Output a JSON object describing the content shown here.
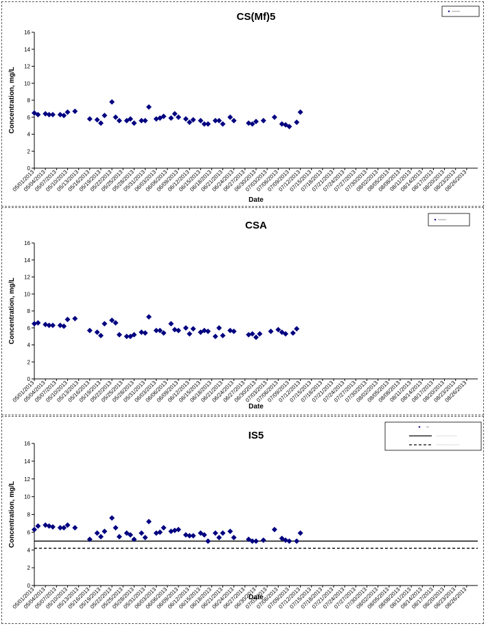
{
  "chart_data": [
    {
      "type": "scatter",
      "title": "CS(Mf)5",
      "xlabel": "Date",
      "ylabel": "Concentration, mg/L",
      "ylim": [
        0,
        16
      ],
      "yticks": [
        0,
        2,
        4,
        6,
        8,
        10,
        12,
        14,
        16
      ],
      "x_tick_labels": [
        "05/01/2013",
        "05/04/2013",
        "05/07/2013",
        "05/10/2013",
        "05/13/2013",
        "05/16/2013",
        "05/19/2013",
        "05/22/2013",
        "05/25/2013",
        "05/28/2013",
        "05/31/2013",
        "06/03/2013",
        "06/06/2013",
        "06/09/2013",
        "06/12/2013",
        "06/15/2013",
        "06/18/2013",
        "06/21/2013",
        "06/24/2013",
        "06/27/2013",
        "06/30/2013",
        "07/03/2013",
        "07/06/2013",
        "07/09/2013",
        "07/12/2013",
        "07/15/2013",
        "07/18/2013",
        "07/21/2013",
        "07/24/2013",
        "07/27/2013",
        "07/30/2013",
        "08/02/2013",
        "08/05/2013",
        "08/08/2013",
        "08/11/2013",
        "08/14/2013",
        "08/17/2013",
        "08/20/2013",
        "08/23/2013",
        "08/26/2013"
      ],
      "x_domain": [
        "05/01/2013",
        "08/29/2013"
      ],
      "grid": false,
      "legend_position": "top-right",
      "series": [
        {
          "color": "#000080",
          "marker": "diamond",
          "points": [
            [
              "05/01/2013",
              6.5
            ],
            [
              "05/02/2013",
              6.3
            ],
            [
              "05/04/2013",
              6.4
            ],
            [
              "05/05/2013",
              6.3
            ],
            [
              "05/06/2013",
              6.3
            ],
            [
              "05/08/2013",
              6.3
            ],
            [
              "05/09/2013",
              6.2
            ],
            [
              "05/10/2013",
              6.6
            ],
            [
              "05/12/2013",
              6.7
            ],
            [
              "05/16/2013",
              5.8
            ],
            [
              "05/18/2013",
              5.7
            ],
            [
              "05/19/2013",
              5.3
            ],
            [
              "05/20/2013",
              6.2
            ],
            [
              "05/22/2013",
              7.8
            ],
            [
              "05/23/2013",
              6.0
            ],
            [
              "05/24/2013",
              5.6
            ],
            [
              "05/26/2013",
              5.6
            ],
            [
              "05/27/2013",
              5.8
            ],
            [
              "05/28/2013",
              5.3
            ],
            [
              "05/30/2013",
              5.6
            ],
            [
              "05/31/2013",
              5.6
            ],
            [
              "06/01/2013",
              7.2
            ],
            [
              "06/03/2013",
              5.8
            ],
            [
              "06/04/2013",
              5.9
            ],
            [
              "06/05/2013",
              6.1
            ],
            [
              "06/07/2013",
              5.9
            ],
            [
              "06/08/2013",
              6.4
            ],
            [
              "06/09/2013",
              6.0
            ],
            [
              "06/11/2013",
              5.8
            ],
            [
              "06/12/2013",
              5.4
            ],
            [
              "06/13/2013",
              5.7
            ],
            [
              "06/15/2013",
              5.6
            ],
            [
              "06/16/2013",
              5.2
            ],
            [
              "06/17/2013",
              5.2
            ],
            [
              "06/19/2013",
              5.6
            ],
            [
              "06/20/2013",
              5.6
            ],
            [
              "06/21/2013",
              5.2
            ],
            [
              "06/23/2013",
              6.0
            ],
            [
              "06/24/2013",
              5.6
            ],
            [
              "06/28/2013",
              5.3
            ],
            [
              "06/29/2013",
              5.2
            ],
            [
              "06/30/2013",
              5.5
            ],
            [
              "07/02/2013",
              5.6
            ],
            [
              "07/05/2013",
              6.0
            ],
            [
              "07/07/2013",
              5.2
            ],
            [
              "07/08/2013",
              5.1
            ],
            [
              "07/09/2013",
              4.9
            ],
            [
              "07/11/2013",
              5.4
            ],
            [
              "07/12/2013",
              6.6
            ]
          ]
        }
      ]
    },
    {
      "type": "scatter",
      "title": "CSA",
      "xlabel": "Date",
      "ylabel": "Concentration, mg/L",
      "ylim": [
        0,
        16
      ],
      "yticks": [
        0,
        2,
        4,
        6,
        8,
        10,
        12,
        14,
        16
      ],
      "x_tick_labels": [
        "05/01/2013",
        "05/04/2013",
        "05/07/2013",
        "05/10/2013",
        "05/13/2013",
        "05/16/2013",
        "05/19/2013",
        "05/22/2013",
        "05/25/2013",
        "05/28/2013",
        "05/31/2013",
        "06/03/2013",
        "06/06/2013",
        "06/09/2013",
        "06/12/2013",
        "06/15/2013",
        "06/18/2013",
        "06/21/2013",
        "06/24/2013",
        "06/27/2013",
        "06/30/2013",
        "07/03/2013",
        "07/06/2013",
        "07/09/2013",
        "07/12/2013",
        "07/15/2013",
        "07/18/2013",
        "07/21/2013",
        "07/24/2013",
        "07/27/2013",
        "07/30/2013",
        "08/02/2013",
        "08/05/2013",
        "08/08/2013",
        "08/11/2013",
        "08/14/2013",
        "08/17/2013",
        "08/20/2013",
        "08/23/2013",
        "08/26/2013"
      ],
      "x_domain": [
        "05/01/2013",
        "08/29/2013"
      ],
      "grid": false,
      "legend_position": "top-right",
      "series": [
        {
          "color": "#000080",
          "marker": "diamond",
          "points": [
            [
              "05/01/2013",
              6.5
            ],
            [
              "05/02/2013",
              6.6
            ],
            [
              "05/04/2013",
              6.4
            ],
            [
              "05/05/2013",
              6.3
            ],
            [
              "05/06/2013",
              6.3
            ],
            [
              "05/08/2013",
              6.3
            ],
            [
              "05/09/2013",
              6.2
            ],
            [
              "05/10/2013",
              7.0
            ],
            [
              "05/12/2013",
              7.1
            ],
            [
              "05/16/2013",
              5.7
            ],
            [
              "05/18/2013",
              5.5
            ],
            [
              "05/19/2013",
              5.1
            ],
            [
              "05/20/2013",
              6.5
            ],
            [
              "05/22/2013",
              6.9
            ],
            [
              "05/23/2013",
              6.6
            ],
            [
              "05/24/2013",
              5.2
            ],
            [
              "05/26/2013",
              5.0
            ],
            [
              "05/27/2013",
              5.0
            ],
            [
              "05/28/2013",
              5.2
            ],
            [
              "05/30/2013",
              5.5
            ],
            [
              "05/31/2013",
              5.4
            ],
            [
              "06/01/2013",
              7.3
            ],
            [
              "06/03/2013",
              5.7
            ],
            [
              "06/04/2013",
              5.7
            ],
            [
              "06/05/2013",
              5.4
            ],
            [
              "06/07/2013",
              6.5
            ],
            [
              "06/08/2013",
              5.8
            ],
            [
              "06/09/2013",
              5.7
            ],
            [
              "06/11/2013",
              6.0
            ],
            [
              "06/12/2013",
              5.3
            ],
            [
              "06/13/2013",
              5.9
            ],
            [
              "06/15/2013",
              5.5
            ],
            [
              "06/16/2013",
              5.7
            ],
            [
              "06/17/2013",
              5.6
            ],
            [
              "06/19/2013",
              5.0
            ],
            [
              "06/20/2013",
              6.0
            ],
            [
              "06/21/2013",
              5.1
            ],
            [
              "06/23/2013",
              5.7
            ],
            [
              "06/24/2013",
              5.6
            ],
            [
              "06/28/2013",
              5.2
            ],
            [
              "06/29/2013",
              5.3
            ],
            [
              "06/30/2013",
              4.9
            ],
            [
              "07/01/2013",
              5.3
            ],
            [
              "07/04/2013",
              5.6
            ],
            [
              "07/06/2013",
              5.8
            ],
            [
              "07/07/2013",
              5.5
            ],
            [
              "07/08/2013",
              5.3
            ],
            [
              "07/10/2013",
              5.4
            ],
            [
              "07/11/2013",
              5.9
            ]
          ]
        }
      ]
    },
    {
      "type": "scatter",
      "title": "IS5",
      "xlabel": "Date",
      "ylabel": "Concentration, mg/L",
      "ylim": [
        0,
        16
      ],
      "yticks": [
        0,
        2,
        4,
        6,
        8,
        10,
        12,
        14,
        16
      ],
      "x_tick_labels": [
        "05/01/2013",
        "05/04/2013",
        "05/07/2013",
        "05/10/2013",
        "05/13/2013",
        "05/16/2013",
        "05/19/2013",
        "05/22/2013",
        "05/25/2013",
        "05/28/2013",
        "05/31/2013",
        "06/03/2013",
        "06/06/2013",
        "06/09/2013",
        "06/12/2013",
        "06/15/2013",
        "06/18/2013",
        "06/21/2013",
        "06/24/2013",
        "06/27/2013",
        "06/30/2013",
        "07/03/2013",
        "07/06/2013",
        "07/09/2013",
        "07/12/2013",
        "07/15/2013",
        "07/18/2013",
        "07/21/2013",
        "07/24/2013",
        "07/27/2013",
        "07/30/2013",
        "08/02/2013",
        "08/05/2013",
        "08/08/2013",
        "08/11/2013",
        "08/14/2013",
        "08/17/2013",
        "08/20/2013",
        "08/23/2013",
        "08/26/2013"
      ],
      "x_domain": [
        "05/01/2013",
        "08/29/2013"
      ],
      "grid": false,
      "legend_position": "top-right",
      "reference_lines": [
        {
          "y": 5.0,
          "style": "solid",
          "color": "#000000"
        },
        {
          "y": 4.2,
          "style": "dashed",
          "color": "#000000"
        }
      ],
      "series": [
        {
          "color": "#000080",
          "marker": "diamond",
          "points": [
            [
              "05/01/2013",
              6.3
            ],
            [
              "05/02/2013",
              6.7
            ],
            [
              "05/04/2013",
              6.8
            ],
            [
              "05/05/2013",
              6.7
            ],
            [
              "05/06/2013",
              6.6
            ],
            [
              "05/08/2013",
              6.5
            ],
            [
              "05/09/2013",
              6.5
            ],
            [
              "05/10/2013",
              6.8
            ],
            [
              "05/12/2013",
              6.5
            ],
            [
              "05/16/2013",
              5.2
            ],
            [
              "05/18/2013",
              5.9
            ],
            [
              "05/19/2013",
              5.5
            ],
            [
              "05/20/2013",
              6.1
            ],
            [
              "05/22/2013",
              7.6
            ],
            [
              "05/23/2013",
              6.5
            ],
            [
              "05/24/2013",
              5.5
            ],
            [
              "05/26/2013",
              5.9
            ],
            [
              "05/27/2013",
              5.7
            ],
            [
              "05/28/2013",
              5.2
            ],
            [
              "05/30/2013",
              5.9
            ],
            [
              "05/31/2013",
              5.4
            ],
            [
              "06/01/2013",
              7.2
            ],
            [
              "06/03/2013",
              5.9
            ],
            [
              "06/04/2013",
              6.0
            ],
            [
              "06/05/2013",
              6.5
            ],
            [
              "06/07/2013",
              6.1
            ],
            [
              "06/08/2013",
              6.2
            ],
            [
              "06/09/2013",
              6.3
            ],
            [
              "06/11/2013",
              5.7
            ],
            [
              "06/12/2013",
              5.6
            ],
            [
              "06/13/2013",
              5.6
            ],
            [
              "06/15/2013",
              5.9
            ],
            [
              "06/16/2013",
              5.7
            ],
            [
              "06/17/2013",
              5.0
            ],
            [
              "06/19/2013",
              5.9
            ],
            [
              "06/20/2013",
              5.4
            ],
            [
              "06/21/2013",
              5.9
            ],
            [
              "06/23/2013",
              6.1
            ],
            [
              "06/24/2013",
              5.4
            ],
            [
              "06/28/2013",
              5.2
            ],
            [
              "06/29/2013",
              5.0
            ],
            [
              "06/30/2013",
              5.0
            ],
            [
              "07/02/2013",
              5.1
            ],
            [
              "07/05/2013",
              6.3
            ],
            [
              "07/07/2013",
              5.3
            ],
            [
              "07/08/2013",
              5.1
            ],
            [
              "07/09/2013",
              5.0
            ],
            [
              "07/11/2013",
              5.0
            ],
            [
              "07/12/2013",
              5.9
            ]
          ]
        }
      ]
    }
  ]
}
